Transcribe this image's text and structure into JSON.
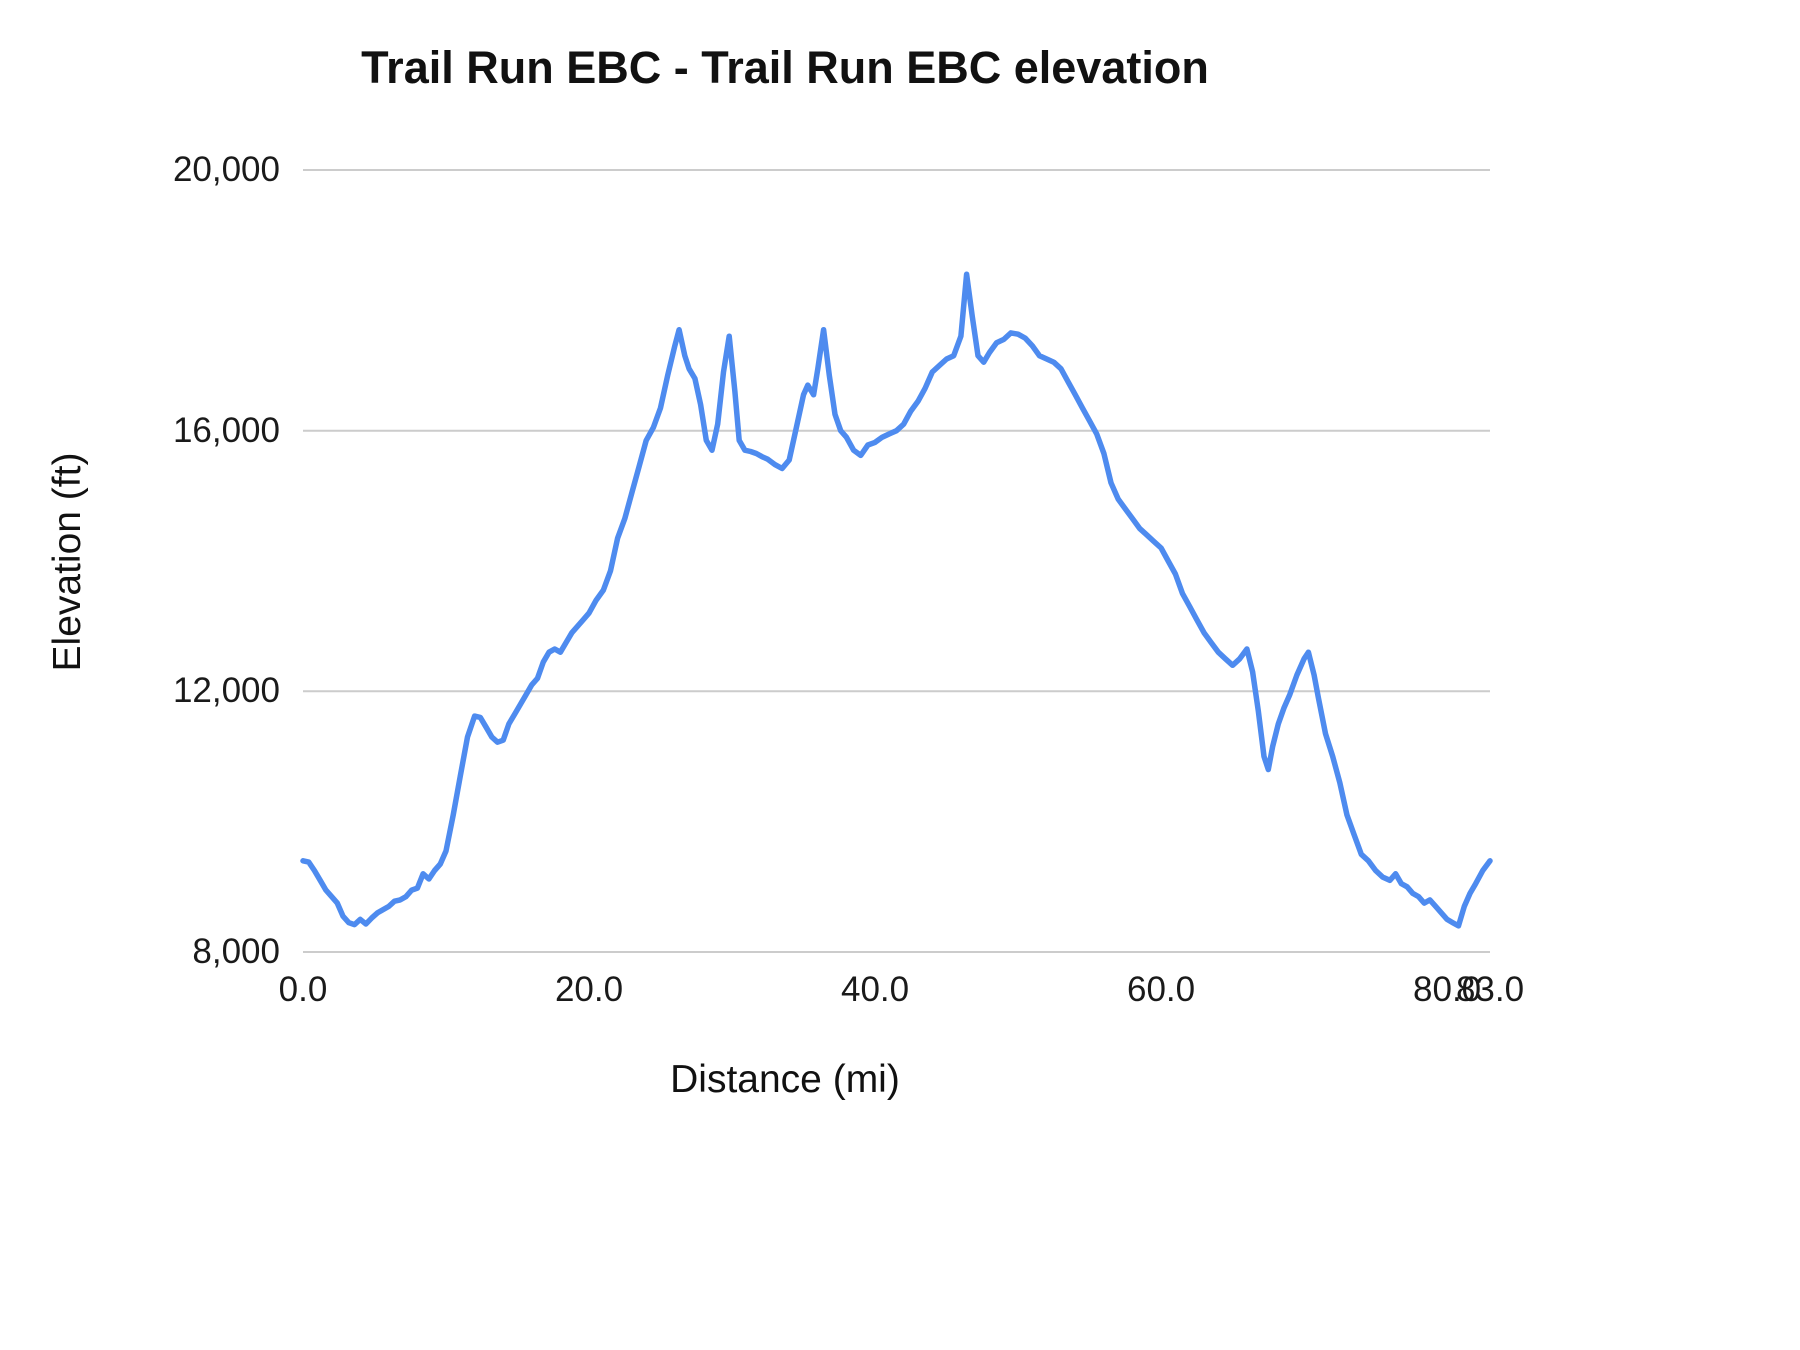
{
  "colors": {
    "line": "#4e8bef",
    "grid": "#cccccc",
    "text": "#1a1a1a"
  },
  "chart_data": {
    "type": "line",
    "title": "Trail Run EBC - Trail Run EBC elevation",
    "xlabel": "Distance (mi)",
    "ylabel": "Elevation (ft)",
    "xlim": [
      0,
      83
    ],
    "ylim": [
      8000,
      20000
    ],
    "grid": "horizontal",
    "legend": "none",
    "x_ticks": [
      {
        "value": 0,
        "label": "0.0"
      },
      {
        "value": 20,
        "label": "20.0"
      },
      {
        "value": 40,
        "label": "40.0"
      },
      {
        "value": 60,
        "label": "60.0"
      },
      {
        "value": 80,
        "label": "80.0"
      },
      {
        "value": 83,
        "label": "83.0"
      }
    ],
    "y_ticks": [
      {
        "value": 8000,
        "label": "8,000"
      },
      {
        "value": 12000,
        "label": "12,000"
      },
      {
        "value": 16000,
        "label": "16,000"
      },
      {
        "value": 20000,
        "label": "20,000"
      }
    ],
    "series": [
      {
        "name": "Trail Run EBC elevation",
        "points": [
          [
            0,
            9400
          ],
          [
            0.4,
            9380
          ],
          [
            0.8,
            9250
          ],
          [
            1.2,
            9100
          ],
          [
            1.6,
            8950
          ],
          [
            2,
            8850
          ],
          [
            2.4,
            8750
          ],
          [
            2.8,
            8550
          ],
          [
            3.2,
            8450
          ],
          [
            3.6,
            8420
          ],
          [
            4,
            8500
          ],
          [
            4.4,
            8430
          ],
          [
            4.8,
            8520
          ],
          [
            5.2,
            8600
          ],
          [
            5.6,
            8650
          ],
          [
            6,
            8700
          ],
          [
            6.4,
            8780
          ],
          [
            6.8,
            8800
          ],
          [
            7.2,
            8850
          ],
          [
            7.6,
            8950
          ],
          [
            8,
            8980
          ],
          [
            8.4,
            9200
          ],
          [
            8.8,
            9120
          ],
          [
            9.2,
            9250
          ],
          [
            9.6,
            9350
          ],
          [
            10,
            9550
          ],
          [
            10.5,
            10100
          ],
          [
            11,
            10700
          ],
          [
            11.5,
            11300
          ],
          [
            12,
            11620
          ],
          [
            12.4,
            11600
          ],
          [
            12.8,
            11450
          ],
          [
            13.2,
            11300
          ],
          [
            13.6,
            11220
          ],
          [
            14,
            11250
          ],
          [
            14.4,
            11500
          ],
          [
            14.8,
            11650
          ],
          [
            15.2,
            11800
          ],
          [
            15.6,
            11950
          ],
          [
            16,
            12100
          ],
          [
            16.4,
            12200
          ],
          [
            16.8,
            12450
          ],
          [
            17.2,
            12600
          ],
          [
            17.6,
            12650
          ],
          [
            18,
            12600
          ],
          [
            18.4,
            12750
          ],
          [
            18.8,
            12900
          ],
          [
            19.2,
            13000
          ],
          [
            19.6,
            13100
          ],
          [
            20,
            13200
          ],
          [
            20.5,
            13400
          ],
          [
            21,
            13550
          ],
          [
            21.5,
            13850
          ],
          [
            22,
            14350
          ],
          [
            22.5,
            14650
          ],
          [
            23,
            15050
          ],
          [
            23.5,
            15450
          ],
          [
            24,
            15850
          ],
          [
            24.5,
            16050
          ],
          [
            25,
            16350
          ],
          [
            25.5,
            16850
          ],
          [
            26,
            17300
          ],
          [
            26.3,
            17550
          ],
          [
            26.7,
            17150
          ],
          [
            27,
            16950
          ],
          [
            27.4,
            16800
          ],
          [
            27.8,
            16400
          ],
          [
            28.2,
            15850
          ],
          [
            28.6,
            15700
          ],
          [
            29,
            16100
          ],
          [
            29.4,
            16900
          ],
          [
            29.8,
            17450
          ],
          [
            30.2,
            16600
          ],
          [
            30.5,
            15850
          ],
          [
            30.9,
            15700
          ],
          [
            31.3,
            15680
          ],
          [
            31.7,
            15650
          ],
          [
            32.1,
            15600
          ],
          [
            32.5,
            15560
          ],
          [
            33,
            15480
          ],
          [
            33.5,
            15420
          ],
          [
            34,
            15550
          ],
          [
            34.5,
            16050
          ],
          [
            35,
            16550
          ],
          [
            35.3,
            16700
          ],
          [
            35.7,
            16550
          ],
          [
            36,
            16950
          ],
          [
            36.4,
            17550
          ],
          [
            36.8,
            16850
          ],
          [
            37.2,
            16250
          ],
          [
            37.6,
            16000
          ],
          [
            38,
            15900
          ],
          [
            38.5,
            15700
          ],
          [
            39,
            15620
          ],
          [
            39.5,
            15780
          ],
          [
            40,
            15820
          ],
          [
            40.5,
            15900
          ],
          [
            41,
            15950
          ],
          [
            41.5,
            16000
          ],
          [
            42,
            16100
          ],
          [
            42.5,
            16300
          ],
          [
            43,
            16450
          ],
          [
            43.5,
            16650
          ],
          [
            44,
            16900
          ],
          [
            44.5,
            17000
          ],
          [
            45,
            17100
          ],
          [
            45.5,
            17150
          ],
          [
            46,
            17450
          ],
          [
            46.4,
            18400
          ],
          [
            46.8,
            17750
          ],
          [
            47.2,
            17150
          ],
          [
            47.6,
            17050
          ],
          [
            48,
            17200
          ],
          [
            48.5,
            17350
          ],
          [
            49,
            17400
          ],
          [
            49.5,
            17500
          ],
          [
            50,
            17480
          ],
          [
            50.5,
            17420
          ],
          [
            51,
            17300
          ],
          [
            51.5,
            17150
          ],
          [
            52,
            17100
          ],
          [
            52.5,
            17050
          ],
          [
            53,
            16950
          ],
          [
            53.5,
            16750
          ],
          [
            54,
            16550
          ],
          [
            54.5,
            16350
          ],
          [
            55,
            16150
          ],
          [
            55.5,
            15950
          ],
          [
            56,
            15650
          ],
          [
            56.5,
            15200
          ],
          [
            57,
            14950
          ],
          [
            57.5,
            14800
          ],
          [
            58,
            14650
          ],
          [
            58.5,
            14500
          ],
          [
            59,
            14400
          ],
          [
            59.5,
            14300
          ],
          [
            60,
            14200
          ],
          [
            60.5,
            14000
          ],
          [
            61,
            13800
          ],
          [
            61.5,
            13500
          ],
          [
            62,
            13300
          ],
          [
            62.5,
            13100
          ],
          [
            63,
            12900
          ],
          [
            63.5,
            12750
          ],
          [
            64,
            12600
          ],
          [
            64.5,
            12500
          ],
          [
            65,
            12400
          ],
          [
            65.5,
            12500
          ],
          [
            66,
            12650
          ],
          [
            66.4,
            12300
          ],
          [
            66.8,
            11700
          ],
          [
            67.2,
            11000
          ],
          [
            67.5,
            10800
          ],
          [
            67.8,
            11150
          ],
          [
            68.2,
            11500
          ],
          [
            68.6,
            11750
          ],
          [
            69,
            11950
          ],
          [
            69.5,
            12250
          ],
          [
            70,
            12500
          ],
          [
            70.3,
            12600
          ],
          [
            70.7,
            12250
          ],
          [
            71,
            11900
          ],
          [
            71.5,
            11350
          ],
          [
            72,
            11000
          ],
          [
            72.5,
            10600
          ],
          [
            73,
            10100
          ],
          [
            73.5,
            9800
          ],
          [
            74,
            9500
          ],
          [
            74.5,
            9400
          ],
          [
            75,
            9250
          ],
          [
            75.5,
            9150
          ],
          [
            76,
            9100
          ],
          [
            76.4,
            9200
          ],
          [
            76.8,
            9050
          ],
          [
            77.2,
            9000
          ],
          [
            77.6,
            8900
          ],
          [
            78,
            8850
          ],
          [
            78.4,
            8750
          ],
          [
            78.8,
            8800
          ],
          [
            79.2,
            8700
          ],
          [
            79.6,
            8600
          ],
          [
            80,
            8500
          ],
          [
            80.4,
            8450
          ],
          [
            80.8,
            8400
          ],
          [
            81.2,
            8700
          ],
          [
            81.6,
            8900
          ],
          [
            82,
            9050
          ],
          [
            82.5,
            9250
          ],
          [
            83,
            9400
          ]
        ]
      }
    ]
  }
}
